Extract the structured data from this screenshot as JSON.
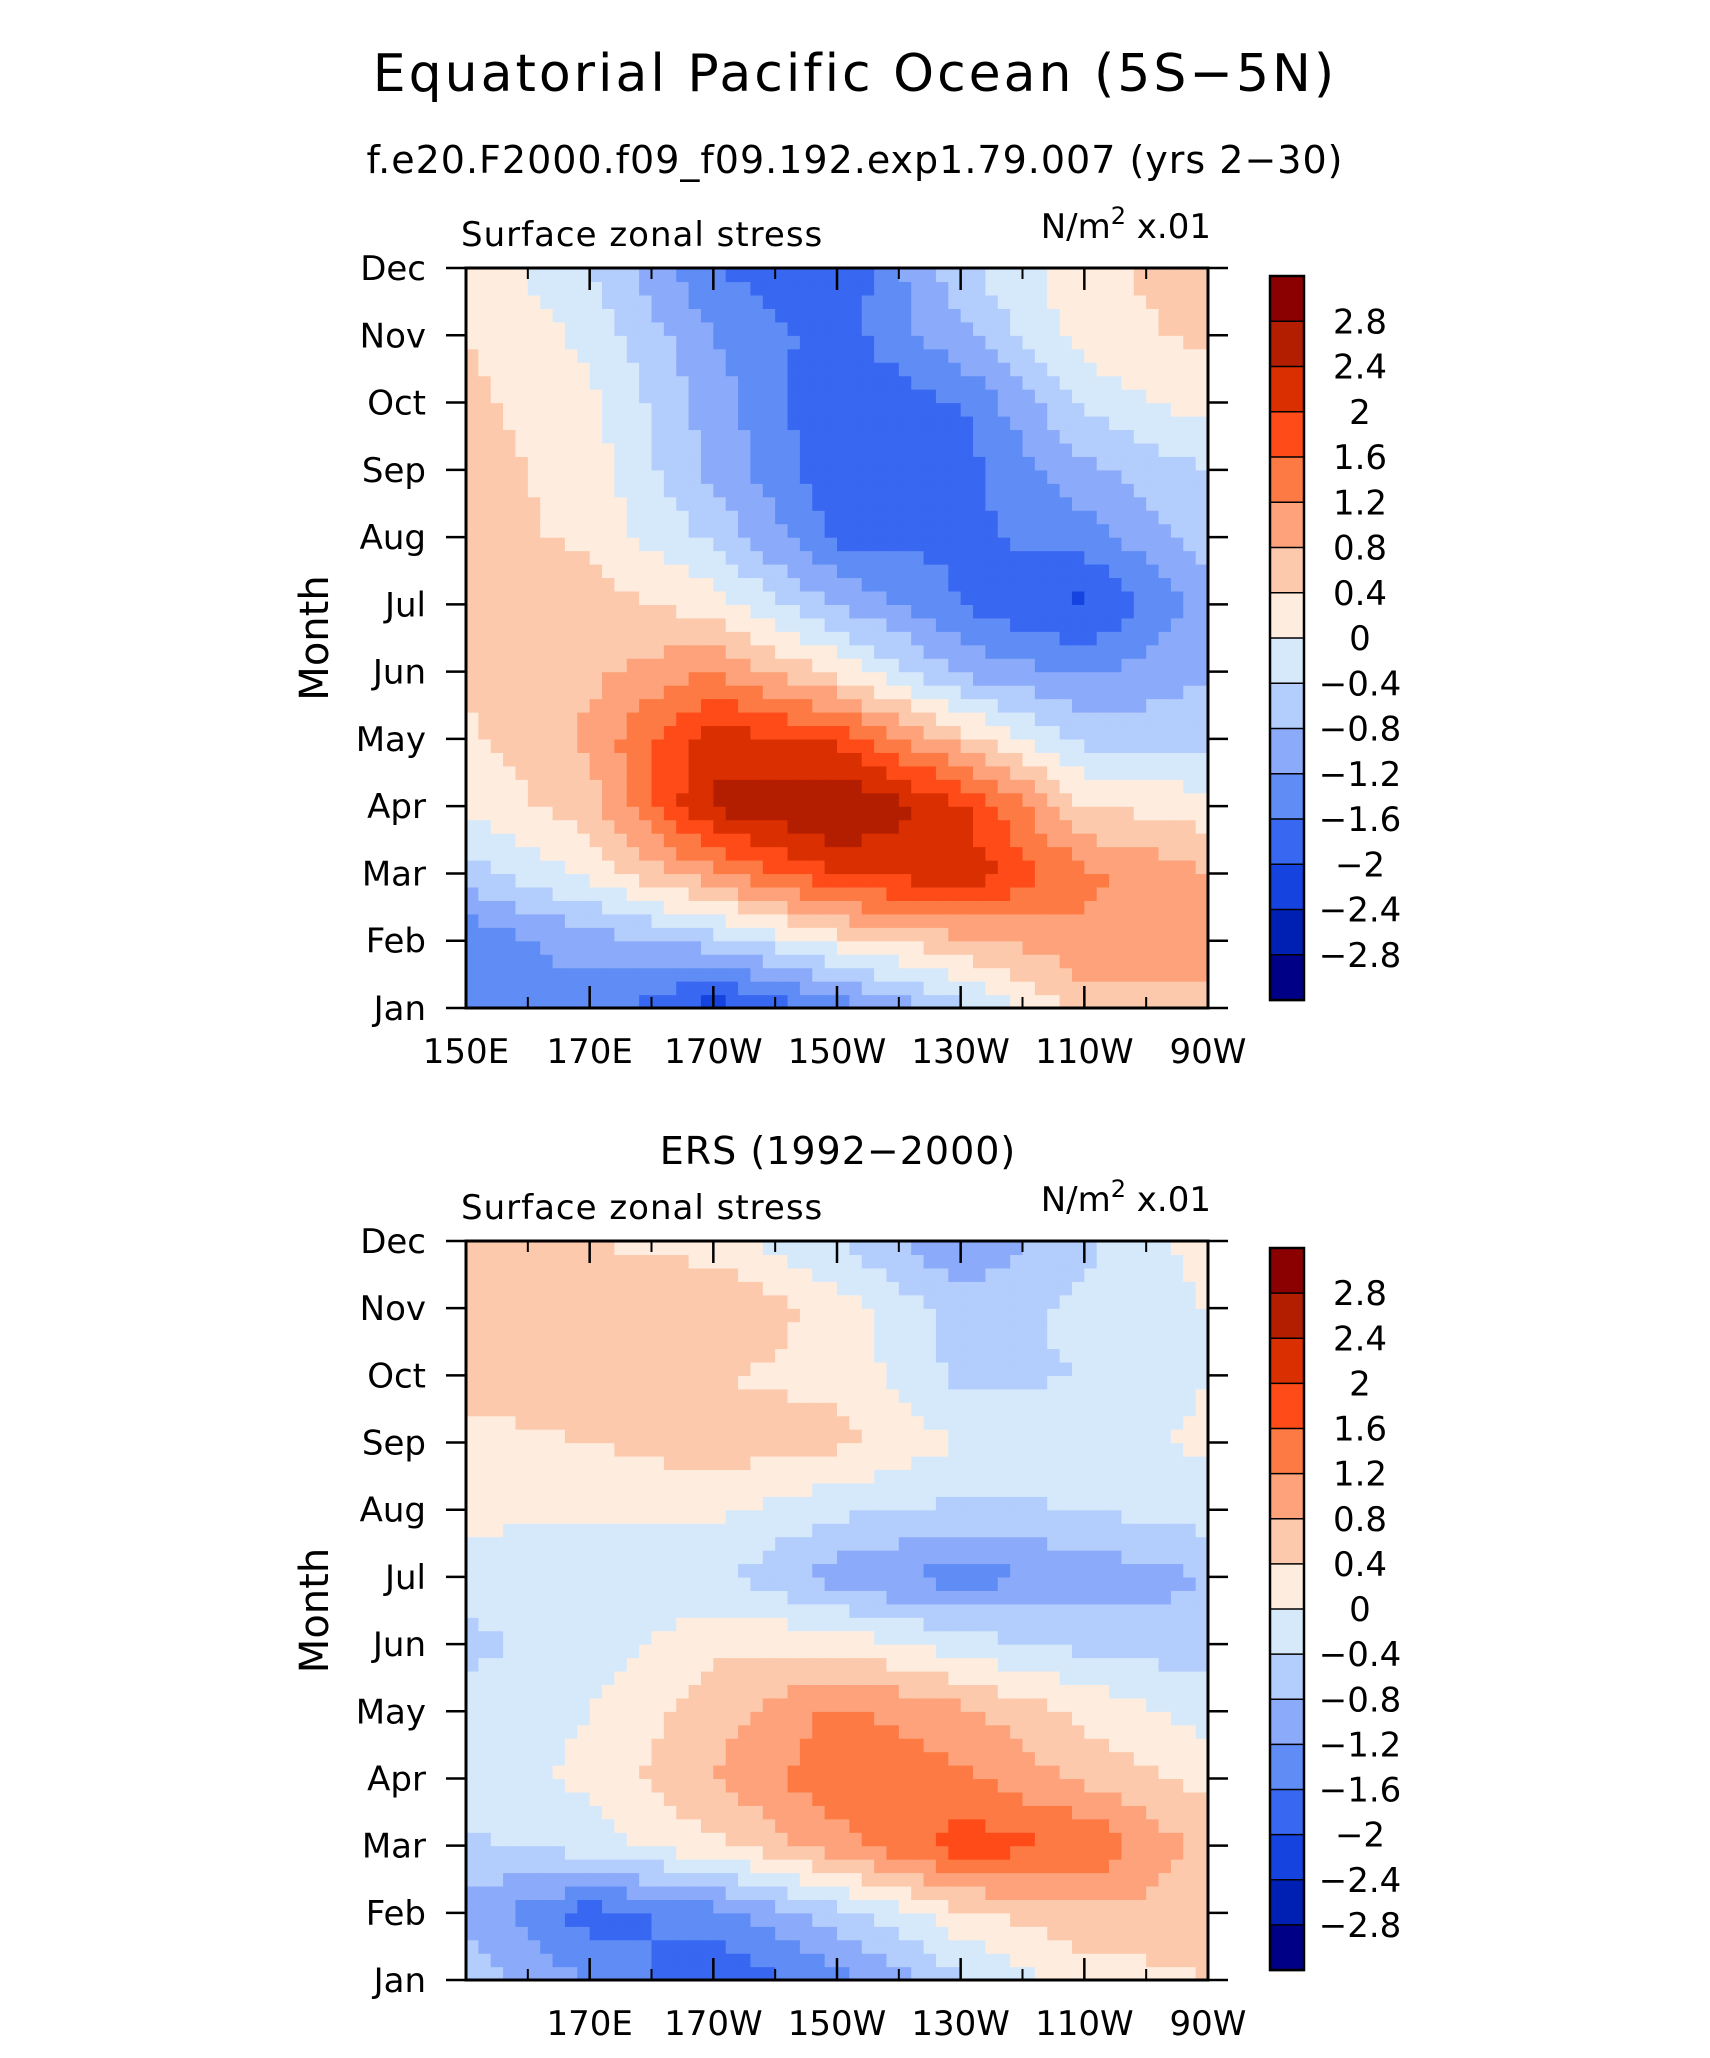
{
  "header": {
    "title": "Equatorial Pacific Ocean (5S−5N)",
    "subtitle": "f.e20.F2000.f09_f09.192.exp1.79.007 (yrs 2−30)"
  },
  "colorbar": {
    "labels": [
      "2.8",
      "2.4",
      "2",
      "1.6",
      "1.2",
      "0.8",
      "0.4",
      "0",
      "−0.4",
      "−0.8",
      "−1.2",
      "−1.6",
      "−2",
      "−2.4",
      "−2.8"
    ],
    "colors": [
      "#8b0000",
      "#b41e00",
      "#da2f00",
      "#fe4b18",
      "#fd7a44",
      "#fda27a",
      "#fcc9ac",
      "#feeddf",
      "#d6e9fb",
      "#b3cdfc",
      "#8caafa",
      "#5f8cf5",
      "#3867f1",
      "#1443e0",
      "#0020b4",
      "#000086"
    ]
  },
  "chart_data": [
    {
      "type": "heatmap",
      "title": "",
      "left_label": "Surface zonal stress",
      "unit_label": "N/m",
      "unit_sup": "2",
      "unit_scale": "x.01",
      "ylabel": "Month",
      "xlabel": "",
      "x": [
        150,
        170,
        190,
        210,
        230,
        250,
        270
      ],
      "x_ticks": [
        "150E",
        "170E",
        "170W",
        "150W",
        "130W",
        "110W",
        "90W"
      ],
      "y_ticks": [
        "Jan",
        "Feb",
        "Mar",
        "Apr",
        "May",
        "Jun",
        "Jul",
        "Aug",
        "Sep",
        "Oct",
        "Nov",
        "Dec"
      ],
      "values": [
        [
          -1.3,
          -1.4,
          -2.2,
          -1.5,
          -0.5,
          0.6,
          0.7
        ],
        [
          -1.5,
          -1.0,
          -0.6,
          0.2,
          0.7,
          1.1,
          1.0
        ],
        [
          -0.6,
          0.1,
          1.1,
          2.0,
          2.3,
          1.3,
          0.8
        ],
        [
          0.1,
          0.6,
          2.5,
          2.9,
          2.1,
          0.4,
          0.2
        ],
        [
          0.3,
          0.9,
          2.2,
          1.9,
          0.6,
          -0.5,
          -0.6
        ],
        [
          0.5,
          0.7,
          1.2,
          0.3,
          -0.9,
          -1.3,
          -0.8
        ],
        [
          0.7,
          0.6,
          0.2,
          -0.8,
          -1.6,
          -2.1,
          -1.0
        ],
        [
          0.6,
          0.3,
          -0.5,
          -1.7,
          -1.7,
          -1.4,
          -0.6
        ],
        [
          0.6,
          0.2,
          -0.9,
          -1.9,
          -1.8,
          -0.9,
          -0.4
        ],
        [
          0.5,
          0.1,
          -1.0,
          -2.0,
          -1.6,
          -0.3,
          0.2
        ],
        [
          0.4,
          -0.1,
          -1.2,
          -1.8,
          -0.9,
          0.2,
          0.5
        ],
        [
          0.3,
          -0.4,
          -1.6,
          -2.0,
          -0.5,
          0.3,
          0.6
        ]
      ],
      "zlim": [
        -2.8,
        2.8
      ]
    },
    {
      "type": "heatmap",
      "title": "ERS (1992−2000)",
      "left_label": "Surface zonal stress",
      "unit_label": "N/m",
      "unit_sup": "2",
      "unit_scale": "x.01",
      "ylabel": "Month",
      "xlabel": "",
      "x": [
        150,
        170,
        190,
        210,
        230,
        250,
        270
      ],
      "x_ticks": [
        "",
        "170E",
        "170W",
        "150W",
        "130W",
        "110W",
        "90W"
      ],
      "y_ticks": [
        "Jan",
        "Feb",
        "Mar",
        "Apr",
        "May",
        "Jun",
        "Jul",
        "Aug",
        "Sep",
        "Oct",
        "Nov",
        "Dec"
      ],
      "values": [
        [
          -0.6,
          -1.2,
          -2.0,
          -1.4,
          -0.5,
          0.2,
          0.4
        ],
        [
          -0.9,
          -1.8,
          -1.4,
          -0.6,
          0.3,
          0.7,
          0.6
        ],
        [
          -0.5,
          -0.2,
          0.3,
          1.0,
          1.8,
          1.6,
          0.6
        ],
        [
          -0.2,
          0.1,
          0.8,
          1.5,
          1.3,
          0.7,
          0.3
        ],
        [
          -0.3,
          0.0,
          0.6,
          1.3,
          0.9,
          0.3,
          -0.2
        ],
        [
          -0.5,
          -0.2,
          0.3,
          0.3,
          -0.2,
          -0.5,
          -0.6
        ],
        [
          -0.2,
          -0.3,
          -0.3,
          -1.0,
          -1.4,
          -1.1,
          -0.8
        ],
        [
          0.1,
          0.1,
          0.1,
          -0.3,
          -0.5,
          -0.4,
          -0.2
        ],
        [
          0.3,
          0.4,
          0.6,
          0.5,
          0.0,
          -0.2,
          0.1
        ],
        [
          0.5,
          0.6,
          0.4,
          0.3,
          -0.5,
          -0.4,
          0.0
        ],
        [
          0.6,
          0.7,
          0.8,
          0.2,
          -0.6,
          -0.3,
          0.0
        ],
        [
          0.5,
          0.4,
          0.2,
          -0.4,
          -1.2,
          -0.5,
          0.2
        ]
      ],
      "zlim": [
        -2.8,
        2.8
      ]
    }
  ]
}
